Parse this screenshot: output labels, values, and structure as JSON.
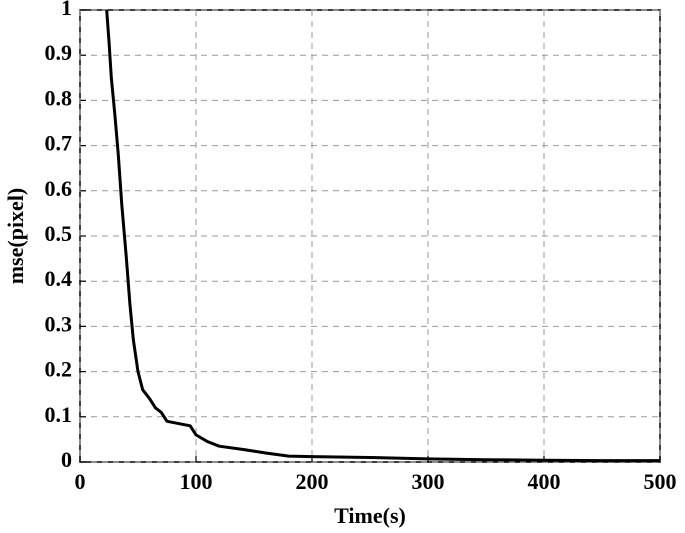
{
  "chart_data": {
    "type": "line",
    "xlabel": "Time(s)",
    "ylabel": "mse(pixel)",
    "x": [
      23,
      25,
      27,
      30,
      33,
      36,
      40,
      43,
      46,
      50,
      54,
      60,
      65,
      70,
      75,
      85,
      95,
      100,
      110,
      120,
      140,
      160,
      180,
      200,
      250,
      300,
      350,
      400,
      450,
      500
    ],
    "series": [
      {
        "name": "mse",
        "color": "#000000",
        "values": [
          1.0,
          0.93,
          0.85,
          0.77,
          0.68,
          0.57,
          0.45,
          0.35,
          0.27,
          0.2,
          0.16,
          0.14,
          0.12,
          0.11,
          0.09,
          0.085,
          0.08,
          0.06,
          0.045,
          0.035,
          0.028,
          0.02,
          0.013,
          0.012,
          0.01,
          0.007,
          0.005,
          0.004,
          0.003,
          0.003
        ]
      }
    ],
    "xlim": [
      0,
      500
    ],
    "xticks": [
      0,
      100,
      200,
      300,
      400,
      500
    ],
    "ylim": [
      0,
      1
    ],
    "yticks": [
      0,
      0.1,
      0.2,
      0.3,
      0.4,
      0.5,
      0.6,
      0.7,
      0.8,
      0.9,
      1
    ],
    "grid": true
  }
}
